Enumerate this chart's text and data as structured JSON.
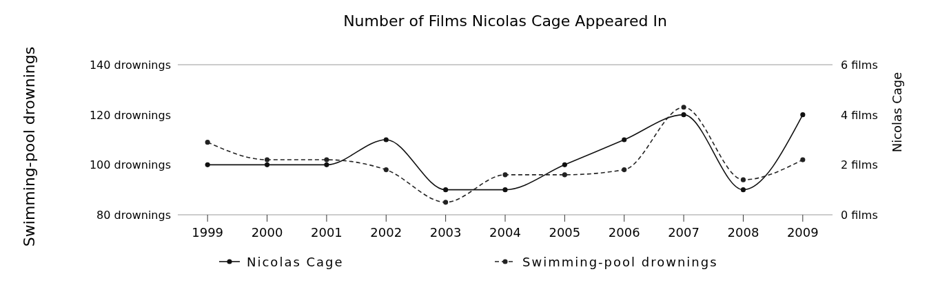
{
  "chart_data": {
    "type": "line",
    "title": "Number of Films Nicolas Cage Appeared In",
    "ylabel": "Swimming-pool drownings",
    "y2label": "Nicolas Cage",
    "categories": [
      "1999",
      "2000",
      "2001",
      "2002",
      "2003",
      "2004",
      "2005",
      "2006",
      "2007",
      "2008",
      "2009"
    ],
    "series": [
      {
        "name": "Nicolas Cage",
        "color": "#111111",
        "axis": "y2",
        "line_style": "solid",
        "values": [
          2,
          2,
          2,
          3,
          1,
          1,
          2,
          3,
          4,
          1,
          4
        ]
      },
      {
        "name": "Swimming-pool drownings",
        "color": "#222222",
        "axis": "y",
        "line_style": "dashed",
        "values": [
          109,
          102,
          102,
          98,
          85,
          96,
          96,
          98,
          123,
          94,
          102
        ]
      }
    ],
    "ylim": [
      80,
      140
    ],
    "yticks": [
      {
        "value": 80,
        "label": "80 drownings"
      },
      {
        "value": 100,
        "label": "100 drownings"
      },
      {
        "value": 120,
        "label": "120 drownings"
      },
      {
        "value": 140,
        "label": "140 drownings"
      }
    ],
    "y2lim": [
      0,
      6
    ],
    "y2ticks": [
      {
        "value": 0,
        "label": "0 films"
      },
      {
        "value": 2,
        "label": "2 films"
      },
      {
        "value": 4,
        "label": "4 films"
      },
      {
        "value": 6,
        "label": "6 films"
      }
    ],
    "marker": "circle",
    "legend": "bottom",
    "grid": false
  }
}
